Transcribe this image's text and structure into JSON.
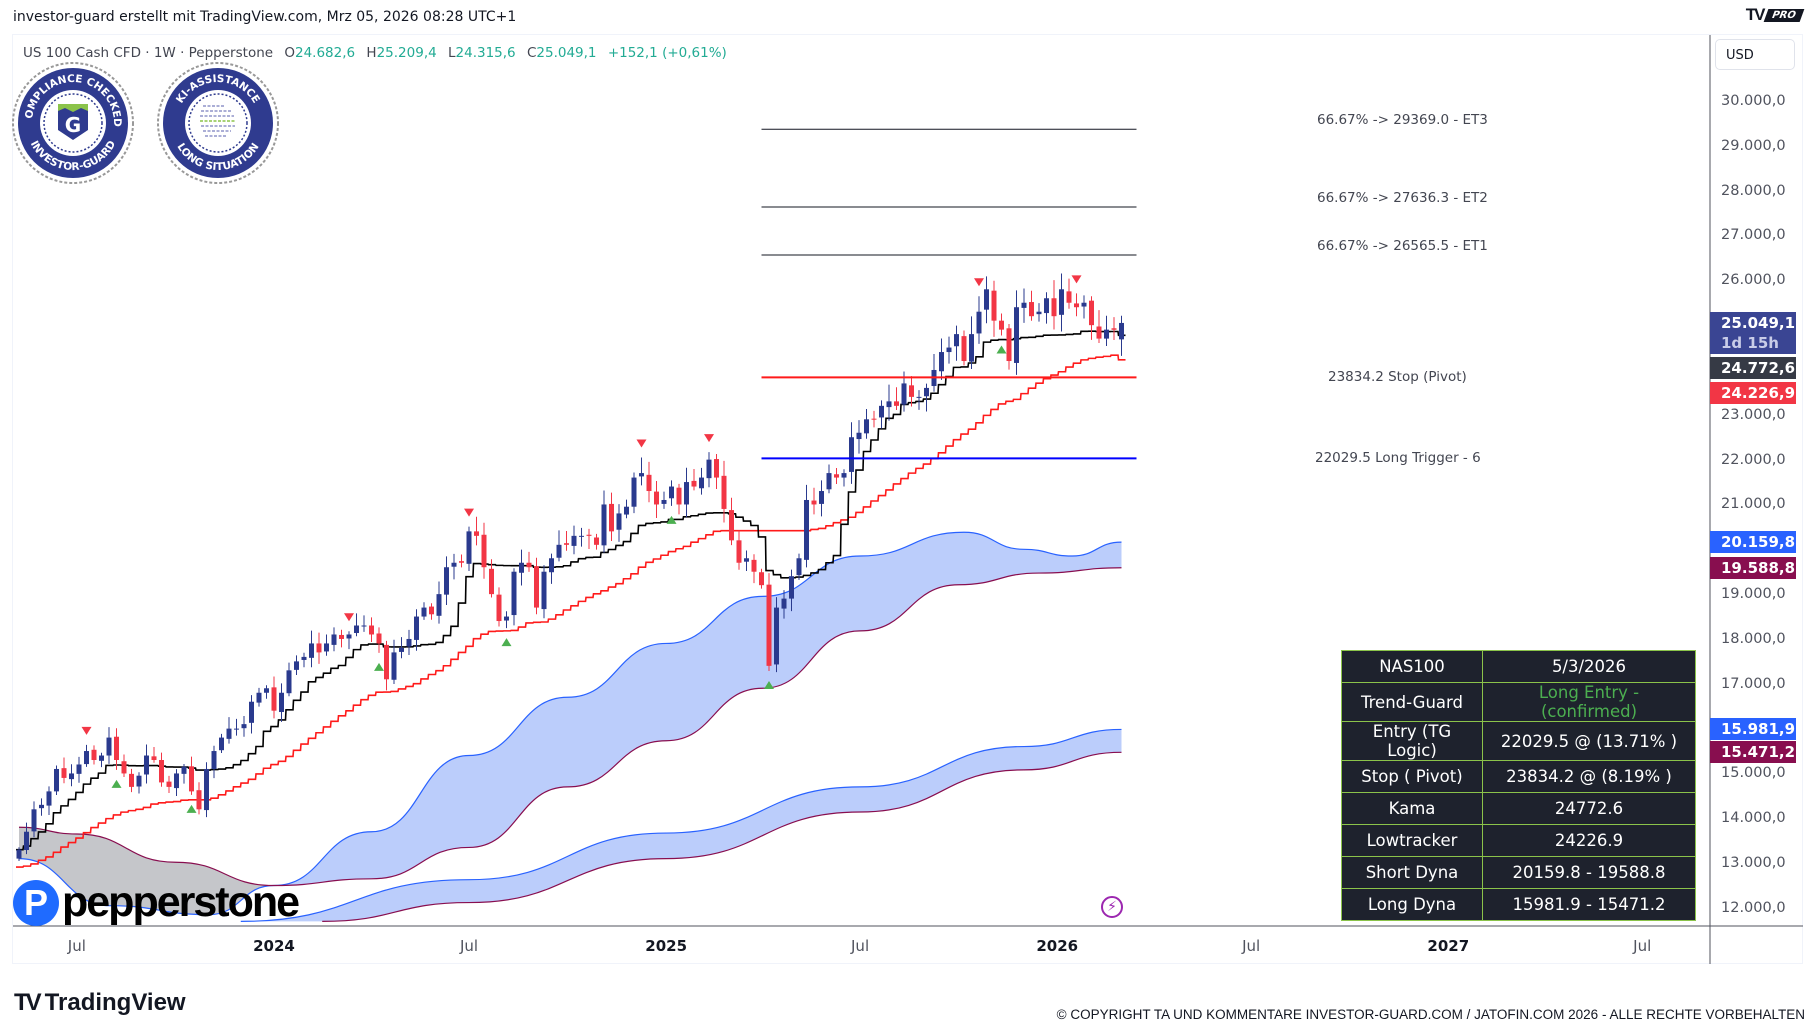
{
  "header": {
    "title": "investor-guard erstellt mit TradingView.com, Mrz 05, 2026 08:28 UTC+1",
    "brand_mark": "TV",
    "brand_badge": "PRO"
  },
  "legend": {
    "symbol": "US 100 Cash CFD · 1W · Pepperstone",
    "o_label": "O",
    "open": "24.682,6",
    "h_label": "H",
    "high": "25.209,4",
    "l_label": "L",
    "low": "24.315,6",
    "c_label": "C",
    "close": "25.049,1",
    "change": "+152,1 (+0,61%)"
  },
  "seals": [
    {
      "top": "COMPLIANCE CHECKED",
      "bottom": "INVESTOR-GUARD",
      "center": "G"
    },
    {
      "top": "KI-ASSISTANCE",
      "bottom": "LONG SITUATION"
    }
  ],
  "currency": "USD",
  "price_axis": {
    "labels": [
      {
        "value": 30000,
        "text": "30.000,0"
      },
      {
        "value": 29000,
        "text": "29.000,0"
      },
      {
        "value": 28000,
        "text": "28.000,0"
      },
      {
        "value": 27000,
        "text": "27.000,0"
      },
      {
        "value": 26000,
        "text": "26.000,0"
      },
      {
        "value": 23000,
        "text": "23.000,0"
      },
      {
        "value": 22000,
        "text": "22.000,0"
      },
      {
        "value": 21000,
        "text": "21.000,0"
      },
      {
        "value": 19000,
        "text": "19.000,0"
      },
      {
        "value": 18000,
        "text": "18.000,0"
      },
      {
        "value": 17000,
        "text": "17.000,0"
      },
      {
        "value": 15000,
        "text": "15.000,0"
      },
      {
        "value": 14000,
        "text": "14.000,0"
      },
      {
        "value": 13000,
        "text": "13.000,0"
      },
      {
        "value": 12000,
        "text": "12.000,0"
      }
    ],
    "badges": [
      {
        "value": 25049.1,
        "text": "25.049,1",
        "sub": "1d 15h",
        "color": "#3a4593"
      },
      {
        "value": 24772.6,
        "text": "24.772,6",
        "color": "#363a45"
      },
      {
        "value": 24226.9,
        "text": "24.226,9",
        "color": "#f23645"
      },
      {
        "value": 20159.8,
        "text": "20.159,8",
        "color": "#2962ff"
      },
      {
        "value": 19588.8,
        "text": "19.588,8",
        "color": "#880e4f"
      },
      {
        "value": 15981.9,
        "text": "15.981,9",
        "color": "#2962ff"
      },
      {
        "value": 15471.2,
        "text": "15.471,2",
        "color": "#880e4f"
      }
    ]
  },
  "time_axis": [
    {
      "date": "2023-07-01",
      "text": "Jul",
      "year": false
    },
    {
      "date": "2024-01-01",
      "text": "2024",
      "year": true
    },
    {
      "date": "2024-07-01",
      "text": "Jul",
      "year": false
    },
    {
      "date": "2025-01-01",
      "text": "2025",
      "year": true
    },
    {
      "date": "2025-07-01",
      "text": "Jul",
      "year": false
    },
    {
      "date": "2026-01-01",
      "text": "2026",
      "year": true
    },
    {
      "date": "2026-07-01",
      "text": "Jul",
      "year": false
    },
    {
      "date": "2027-01-01",
      "text": "2027",
      "year": true
    },
    {
      "date": "2027-07-01",
      "text": "Jul",
      "year": false
    }
  ],
  "levels": {
    "start_date": "2025-03-31",
    "end_date": "2026-03-16",
    "items": [
      {
        "value": 29369.0,
        "label": "66.67% -> 29369.0 - ET3",
        "color": "#131722",
        "width": 1
      },
      {
        "value": 27636.3,
        "label": "66.67% -> 27636.3 - ET2",
        "color": "#131722",
        "width": 1
      },
      {
        "value": 26565.5,
        "label": "66.67% -> 26565.5 - ET1",
        "color": "#131722",
        "width": 1
      },
      {
        "value": 23834.2,
        "label": "23834.2  Stop (Pivot)",
        "color": "#ff1a1a",
        "width": 2
      },
      {
        "value": 22029.5,
        "label": "22029.5  Long Trigger - 6",
        "color": "#0000ff",
        "width": 2
      }
    ]
  },
  "table": {
    "rows": [
      {
        "label": "NAS100",
        "value": "5/3/2026"
      },
      {
        "label": "Trend-Guard",
        "value": "Long Entry - (confirmed)",
        "value_color": "#4caf50"
      },
      {
        "label": "Entry (TG Logic)",
        "value": "22029.5 @ (13.71% )"
      },
      {
        "label": "Stop ( Pivot)",
        "value": "23834.2 @ (8.19% )"
      },
      {
        "label": "Kama",
        "value": "24772.6"
      },
      {
        "label": "Lowtracker",
        "value": "24226.9"
      },
      {
        "label": "Short Dyna",
        "value": "20159.8 - 19588.8"
      },
      {
        "label": "Long Dyna",
        "value": "15981.9 - 15471.2"
      }
    ]
  },
  "broker_logo": {
    "mark": "P",
    "text": "pepperstone"
  },
  "footer": {
    "logo_mark": "TV",
    "logo_text": "TradingView",
    "copyright": "© COPYRIGHT TA UND KOMMENTARE INVESTOR-GUARD.COM / JATOFIN.COM 2026 - ALLE RECHTE VORBEHALTEN"
  },
  "colors": {
    "up": "#2a3a8e",
    "down": "#f23645",
    "kama": "#000000",
    "lowtracker": "#ff1a1a",
    "dyna_upper": "#2962ff",
    "dyna_lower": "#880e4f",
    "dyna_fill": "#bbcdfb",
    "bear_fill": "#c5c6ca",
    "marker_up": "#4caf50",
    "marker_down": "#f23645"
  },
  "chart_data": {
    "type": "candlestick",
    "symbol": "US 100 Cash CFD",
    "interval": "1W",
    "start_week": "2023-05-08",
    "ylim": [
      11700,
      30600
    ],
    "closes": [
      13300,
      13700,
      14200,
      14300,
      14600,
      15100,
      14900,
      15000,
      15200,
      15500,
      15300,
      15400,
      15800,
      15300,
      15000,
      14700,
      14950,
      15400,
      15300,
      14800,
      14700,
      15000,
      15150,
      14600,
      14200,
      15100,
      15500,
      15800,
      16000,
      16000,
      16100,
      16600,
      16800,
      16900,
      16400,
      16800,
      17300,
      17500,
      17600,
      17900,
      17700,
      17900,
      18100,
      18000,
      18100,
      18300,
      18300,
      18100,
      17900,
      17100,
      17700,
      17800,
      18000,
      18500,
      18700,
      18550,
      19000,
      19600,
      19700,
      19700,
      20400,
      20300,
      19600,
      19000,
      18400,
      18500,
      19500,
      19700,
      19600,
      18700,
      19500,
      19800,
      20100,
      20100,
      20300,
      20300,
      20300,
      20100,
      21000,
      20400,
      20800,
      20950,
      21600,
      21700,
      21300,
      21000,
      21100,
      21400,
      21000,
      21500,
      21400,
      21600,
      22000,
      21600,
      20900,
      20200,
      19700,
      19800,
      19500,
      19200,
      17400,
      18700,
      18900,
      19400,
      19800,
      21100,
      21000,
      21300,
      21700,
      21600,
      21700,
      22500,
      22600,
      22900,
      22900,
      23200,
      23300,
      23200,
      23700,
      23400,
      23400,
      23600,
      24000,
      24400,
      24500,
      24800,
      24200,
      24800,
      25300,
      25800,
      25100,
      24900,
      24200,
      25400,
      25500,
      25200,
      25300,
      25600,
      25200,
      25800,
      25500,
      25400,
      25500,
      25000,
      24700,
      24900,
      24897,
      25049.1
    ],
    "last_bar": {
      "open": 24682.6,
      "high": 25209.4,
      "low": 24315.6,
      "close": 25049.1
    },
    "kama_last": 24772.6,
    "lowtracker_last": 24226.9,
    "short_dyna": {
      "upper": [
        [
          "2023-05-08",
          13100
        ],
        [
          "2023-08-01",
          12050
        ],
        [
          "2023-11-01",
          11850
        ],
        [
          "2024-01-01",
          12500
        ],
        [
          "2024-04-01",
          13700
        ],
        [
          "2024-07-01",
          15400
        ],
        [
          "2024-10-01",
          16700
        ],
        [
          "2025-01-01",
          17900
        ],
        [
          "2025-04-01",
          18950
        ],
        [
          "2025-07-01",
          19850
        ],
        [
          "2025-10-06",
          20380
        ],
        [
          "2025-12-01",
          20000
        ],
        [
          "2026-01-15",
          19850
        ],
        [
          "2026-03-02",
          20159.8
        ]
      ],
      "lower": [
        [
          "2023-05-08",
          13800
        ],
        [
          "2023-07-01",
          13650
        ],
        [
          "2023-10-01",
          13020
        ],
        [
          "2024-01-01",
          12500
        ],
        [
          "2024-04-01",
          12650
        ],
        [
          "2024-07-01",
          13350
        ],
        [
          "2024-10-01",
          14700
        ],
        [
          "2025-01-01",
          15730
        ],
        [
          "2025-04-01",
          16900
        ],
        [
          "2025-07-01",
          18180
        ],
        [
          "2025-10-01",
          19210
        ],
        [
          "2025-12-15",
          19470
        ],
        [
          "2026-03-02",
          19588.8
        ]
      ]
    },
    "long_dyna": {
      "upper": [
        [
          "2023-12-01",
          11700
        ],
        [
          "2024-07-01",
          12630
        ],
        [
          "2025-01-01",
          13670
        ],
        [
          "2025-07-01",
          14700
        ],
        [
          "2025-12-01",
          15600
        ],
        [
          "2026-03-02",
          15981.9
        ]
      ],
      "lower": [
        [
          "2024-02-15",
          11700
        ],
        [
          "2024-07-01",
          12120
        ],
        [
          "2025-01-01",
          13100
        ],
        [
          "2025-07-01",
          14140
        ],
        [
          "2025-12-01",
          15080
        ],
        [
          "2026-03-02",
          15471.2
        ]
      ]
    },
    "markers_down": [
      "2023-07-10",
      "2024-03-11",
      "2024-07-01",
      "2024-12-09",
      "2025-02-10",
      "2025-10-20",
      "2026-01-19"
    ],
    "markers_up": [
      "2023-08-07",
      "2023-10-16",
      "2024-04-08",
      "2024-08-05",
      "2025-01-06",
      "2025-04-07",
      "2025-11-10"
    ]
  }
}
